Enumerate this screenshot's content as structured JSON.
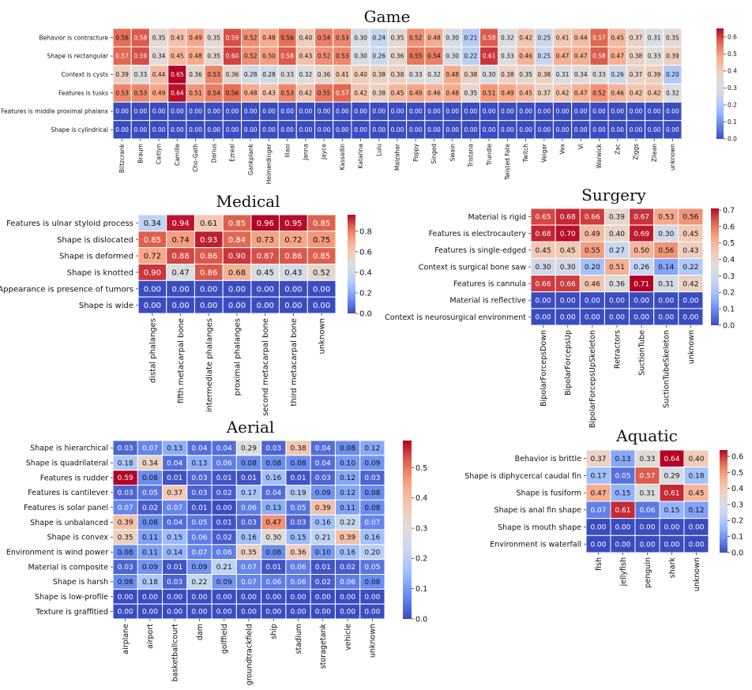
{
  "colormap": {
    "name": "coolwarm",
    "stops": [
      "#3b4cc0",
      "#6788ee",
      "#9abbff",
      "#c9d7f0",
      "#dddddd",
      "#f2cbb7",
      "#f7a889",
      "#e26952",
      "#b40426"
    ]
  },
  "chart_data": [
    {
      "id": "game",
      "type": "heatmap",
      "title": "Game",
      "rows": [
        "Behavior is contracture",
        "Shape is rectangular",
        "Context is cysts",
        "Features is tusks",
        "Features is middle proximal phalanx",
        "Shape is cylindrical"
      ],
      "columns": [
        "Blitzcrank",
        "Braum",
        "Caitlyn",
        "Camille",
        "Cho-Gath",
        "Darius",
        "Ezreal",
        "Gankplank",
        "Heimerdinger",
        "Illaoi",
        "Janna",
        "Jayce",
        "Kassadin",
        "Katarina",
        "Lulu",
        "Malzahar",
        "Poppy",
        "Singed",
        "Swain",
        "Tristana",
        "Trundle",
        "Twisted Fate",
        "Twitch",
        "Veigar",
        "Vex",
        "Vi",
        "Warwick",
        "Zac",
        "Ziggs",
        "Zilean",
        "unknown"
      ],
      "values": [
        [
          0.56,
          0.58,
          0.35,
          0.43,
          0.49,
          0.35,
          0.59,
          0.52,
          0.48,
          0.56,
          0.4,
          0.54,
          0.53,
          0.3,
          0.24,
          0.35,
          0.52,
          0.48,
          0.3,
          0.21,
          0.58,
          0.32,
          0.42,
          0.25,
          0.41,
          0.44,
          0.57,
          0.45,
          0.37,
          0.31,
          0.35
        ],
        [
          0.57,
          0.59,
          0.34,
          0.45,
          0.48,
          0.35,
          0.6,
          0.52,
          0.5,
          0.58,
          0.43,
          0.52,
          0.53,
          0.3,
          0.26,
          0.36,
          0.55,
          0.54,
          0.3,
          0.22,
          0.61,
          0.33,
          0.46,
          0.25,
          0.47,
          0.47,
          0.58,
          0.47,
          0.38,
          0.33,
          0.39
        ],
        [
          0.39,
          0.33,
          0.44,
          0.65,
          0.36,
          0.53,
          0.36,
          0.28,
          0.28,
          0.33,
          0.32,
          0.36,
          0.41,
          0.4,
          0.38,
          0.38,
          0.33,
          0.32,
          0.48,
          0.38,
          0.3,
          0.38,
          0.35,
          0.38,
          0.31,
          0.34,
          0.33,
          0.26,
          0.37,
          0.39,
          0.2
        ],
        [
          0.53,
          0.53,
          0.49,
          0.64,
          0.51,
          0.54,
          0.56,
          0.48,
          0.43,
          0.53,
          0.42,
          0.55,
          0.57,
          0.42,
          0.38,
          0.45,
          0.49,
          0.46,
          0.48,
          0.35,
          0.51,
          0.49,
          0.45,
          0.37,
          0.42,
          0.47,
          0.52,
          0.46,
          0.42,
          0.42,
          0.32
        ],
        [
          0.0,
          0.0,
          0.0,
          0.0,
          0.0,
          0.0,
          0.0,
          0.0,
          0.0,
          0.0,
          0.0,
          0.0,
          0.0,
          0.0,
          0.0,
          0.0,
          0.0,
          0.0,
          0.0,
          0.0,
          0.0,
          0.0,
          0.0,
          0.0,
          0.0,
          0.0,
          0.0,
          0.0,
          0.0,
          0.0,
          0.0
        ],
        [
          0.0,
          0.0,
          0.0,
          0.0,
          0.0,
          0.0,
          0.0,
          0.0,
          0.0,
          0.0,
          0.0,
          0.0,
          0.0,
          0.0,
          0.0,
          0.0,
          0.0,
          0.0,
          0.0,
          0.0,
          0.0,
          0.0,
          0.0,
          0.0,
          0.0,
          0.0,
          0.0,
          0.0,
          0.0,
          0.0,
          0.0
        ]
      ],
      "vmin": 0,
      "vmax": 0.65,
      "colorbar_ticks": [
        "0.0",
        "0.1",
        "0.2",
        "0.3",
        "0.4",
        "0.5",
        "0.6"
      ]
    },
    {
      "id": "medical",
      "type": "heatmap",
      "title": "Medical",
      "rows": [
        "Features is ulnar styloid process",
        "Shape is dislocated",
        "Shape is deformed",
        "Shape is knotted",
        "Appearance is presence of tumors",
        "Shape is wide"
      ],
      "columns": [
        "distal phalanges",
        "fifth metacarpal bone",
        "intermediate phalanges",
        "proximal phalanges",
        "second metacarpal bone",
        "third metacarpal bone",
        "unknown"
      ],
      "values": [
        [
          0.34,
          0.94,
          0.61,
          0.85,
          0.96,
          0.95,
          0.85
        ],
        [
          0.85,
          0.74,
          0.93,
          0.84,
          0.73,
          0.72,
          0.75
        ],
        [
          0.72,
          0.88,
          0.86,
          0.9,
          0.87,
          0.86,
          0.85
        ],
        [
          0.9,
          0.47,
          0.86,
          0.68,
          0.45,
          0.43,
          0.52
        ],
        [
          0.0,
          0.0,
          0.0,
          0.0,
          0.0,
          0.0,
          0.0
        ],
        [
          0.0,
          0.0,
          0.0,
          0.0,
          0.0,
          0.0,
          0.0
        ]
      ],
      "vmin": 0,
      "vmax": 0.96,
      "colorbar_ticks": [
        "0.0",
        "0.2",
        "0.4",
        "0.6",
        "0.8"
      ]
    },
    {
      "id": "surgery",
      "type": "heatmap",
      "title": "Surgery",
      "rows": [
        "Material is rigid",
        "Features is electrocautery",
        "Features is single-edged",
        "Context is surgical bone saw",
        "Features is cannula",
        "Material is reflective",
        "Context is neurosurgical environment"
      ],
      "columns": [
        "BipolarForcepsDown",
        "BipolarForcepsUp",
        "BipolarForcepsUpSkeleton",
        "Retractors",
        "SuctionTube",
        "SuctionTubeSkeleton",
        "unknown"
      ],
      "values": [
        [
          0.65,
          0.68,
          0.66,
          0.39,
          0.67,
          0.53,
          0.56
        ],
        [
          0.68,
          0.7,
          0.49,
          0.4,
          0.69,
          0.3,
          0.45
        ],
        [
          0.45,
          0.45,
          0.55,
          0.27,
          0.5,
          0.56,
          0.43
        ],
        [
          0.3,
          0.3,
          0.2,
          0.51,
          0.26,
          0.14,
          0.22
        ],
        [
          0.66,
          0.66,
          0.46,
          0.36,
          0.71,
          0.31,
          0.42
        ],
        [
          0.0,
          0.0,
          0.0,
          0.0,
          0.0,
          0.0,
          0.0
        ],
        [
          0.0,
          0.0,
          0.0,
          0.0,
          0.0,
          0.0,
          0.0
        ]
      ],
      "vmin": 0,
      "vmax": 0.71,
      "colorbar_ticks": [
        "0.0",
        "0.1",
        "0.2",
        "0.3",
        "0.4",
        "0.5",
        "0.6",
        "0.7"
      ]
    },
    {
      "id": "aerial",
      "type": "heatmap",
      "title": "Aerial",
      "rows": [
        "Shape is hierarchical",
        "Shape is quadrilateral",
        "Features is rudder",
        "Features is cantilever",
        "Features is solar panel",
        "Shape is unbalanced",
        "Shape is convex",
        "Environment is wind power",
        "Material is composite",
        "Shape is harsh",
        "Shape is low-profile",
        "Texture is graffitied"
      ],
      "columns": [
        "airplane",
        "airport",
        "basketballcourt",
        "dam",
        "golffield",
        "groundtrackfield",
        "ship",
        "stadium",
        "storagetank",
        "vehicle",
        "unknown"
      ],
      "values": [
        [
          0.03,
          0.07,
          0.13,
          0.04,
          0.04,
          0.29,
          0.03,
          0.38,
          0.04,
          0.08,
          0.12
        ],
        [
          0.18,
          0.34,
          0.04,
          0.13,
          0.06,
          0.08,
          0.08,
          0.08,
          0.04,
          0.1,
          0.09
        ],
        [
          0.59,
          0.08,
          0.01,
          0.03,
          0.01,
          0.01,
          0.16,
          0.01,
          0.03,
          0.12,
          0.03
        ],
        [
          0.03,
          0.05,
          0.37,
          0.03,
          0.02,
          0.17,
          0.04,
          0.19,
          0.09,
          0.12,
          0.08
        ],
        [
          0.07,
          0.02,
          0.07,
          0.01,
          0.0,
          0.06,
          0.13,
          0.05,
          0.39,
          0.11,
          0.08
        ],
        [
          0.39,
          0.08,
          0.04,
          0.05,
          0.01,
          0.03,
          0.47,
          0.03,
          0.16,
          0.22,
          0.07
        ],
        [
          0.35,
          0.11,
          0.15,
          0.06,
          0.02,
          0.16,
          0.3,
          0.15,
          0.21,
          0.39,
          0.16
        ],
        [
          0.08,
          0.11,
          0.14,
          0.07,
          0.06,
          0.35,
          0.08,
          0.36,
          0.1,
          0.16,
          0.2
        ],
        [
          0.03,
          0.09,
          0.01,
          0.09,
          0.21,
          0.07,
          0.01,
          0.06,
          0.01,
          0.02,
          0.05
        ],
        [
          0.08,
          0.18,
          0.03,
          0.22,
          0.09,
          0.07,
          0.06,
          0.06,
          0.02,
          0.06,
          0.08
        ],
        [
          0.0,
          0.0,
          0.0,
          0.0,
          0.0,
          0.0,
          0.0,
          0.0,
          0.0,
          0.0,
          0.0
        ],
        [
          0.0,
          0.0,
          0.0,
          0.0,
          0.0,
          0.0,
          0.0,
          0.0,
          0.0,
          0.0,
          0.0
        ]
      ],
      "vmin": 0,
      "vmax": 0.59,
      "colorbar_ticks": [
        "0.0",
        "0.1",
        "0.2",
        "0.3",
        "0.4",
        "0.5"
      ]
    },
    {
      "id": "aquatic",
      "type": "heatmap",
      "title": "Aquatic",
      "rows": [
        "Behavior is brittle",
        "Shape is diphycercal caudal fin",
        "Shape is fusiform",
        "Shape is anal fin shape",
        "Shape is mouth shape",
        "Environment is waterfall"
      ],
      "columns": [
        "fish",
        "jellyfish",
        "penguin",
        "shark",
        "unknown"
      ],
      "values": [
        [
          0.37,
          0.13,
          0.33,
          0.64,
          0.4
        ],
        [
          0.17,
          0.05,
          0.57,
          0.29,
          0.18
        ],
        [
          0.47,
          0.15,
          0.31,
          0.61,
          0.45
        ],
        [
          0.07,
          0.61,
          0.06,
          0.15,
          0.12
        ],
        [
          0.0,
          0.0,
          0.0,
          0.0,
          0.0
        ],
        [
          0.0,
          0.0,
          0.0,
          0.0,
          0.0
        ]
      ],
      "vmin": 0,
      "vmax": 0.64,
      "colorbar_ticks": [
        "0.0",
        "0.1",
        "0.2",
        "0.3",
        "0.4",
        "0.5",
        "0.6"
      ]
    }
  ]
}
